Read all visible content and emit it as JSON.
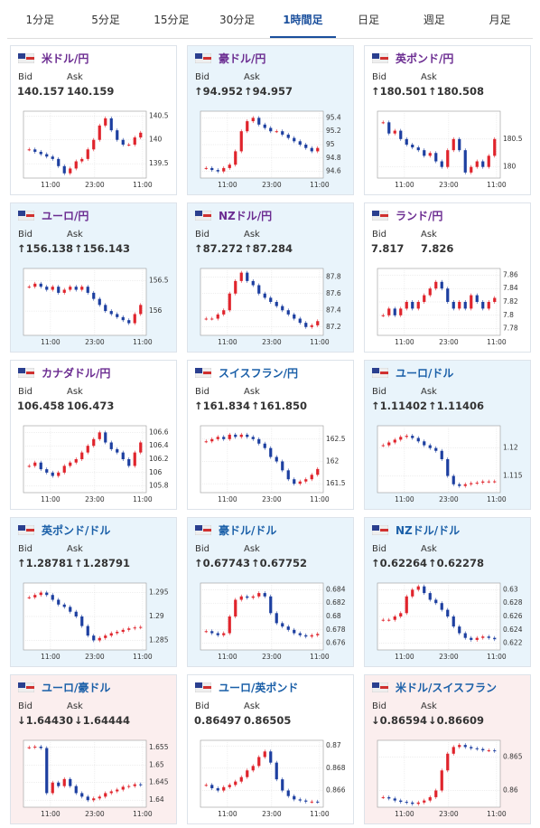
{
  "tabs": [
    "1分足",
    "5分足",
    "15分足",
    "30分足",
    "1時間足",
    "日足",
    "週足",
    "月足"
  ],
  "active_tab": 4,
  "cards": [
    {
      "pair": "米ドル/円",
      "title_color": "#6b2c91",
      "highlight": "none",
      "bid_label": "Bid",
      "ask_label": "Ask",
      "bid": "140.157",
      "ask": "140.159",
      "chart": {
        "ylim": [
          139.2,
          140.6
        ],
        "yticks": [
          139.5,
          140,
          140.5
        ],
        "xticks": [
          "11:00",
          "23:00",
          "11:00"
        ],
        "closes": [
          139.8,
          139.75,
          139.7,
          139.65,
          139.6,
          139.45,
          139.3,
          139.4,
          139.55,
          139.6,
          139.8,
          140.0,
          140.3,
          140.45,
          140.2,
          140.0,
          139.9,
          139.9,
          140.05,
          140.15
        ]
      }
    },
    {
      "pair": "豪ドル/円",
      "title_color": "#6b2c91",
      "highlight": "up",
      "bid_label": "Bid",
      "ask_label": "Ask",
      "bid": "↑94.952",
      "ask": "↑94.957",
      "chart": {
        "ylim": [
          94.5,
          95.5
        ],
        "yticks": [
          94.6,
          94.8,
          95,
          95.2,
          95.4
        ],
        "xticks": [
          "11:00",
          "23:00",
          "11:00"
        ],
        "closes": [
          94.65,
          94.62,
          94.6,
          94.65,
          94.7,
          94.9,
          95.2,
          95.35,
          95.4,
          95.3,
          95.25,
          95.2,
          95.2,
          95.15,
          95.1,
          95.05,
          95.0,
          94.95,
          94.9,
          94.95
        ]
      }
    },
    {
      "pair": "英ポンド/円",
      "title_color": "#6b2c91",
      "highlight": "none",
      "bid_label": "Bid",
      "ask_label": "Ask",
      "bid": "↑180.501",
      "ask": "↑180.508",
      "chart": {
        "ylim": [
          179.8,
          181.0
        ],
        "yticks": [
          180,
          180.5
        ],
        "xticks": [
          "11:00",
          "23:00",
          "11:00"
        ],
        "closes": [
          180.8,
          180.6,
          180.65,
          180.5,
          180.4,
          180.35,
          180.3,
          180.2,
          180.25,
          180.1,
          180.0,
          180.3,
          180.5,
          180.3,
          179.9,
          180.0,
          180.1,
          180.0,
          180.2,
          180.5
        ]
      }
    },
    {
      "pair": "ユーロ/円",
      "title_color": "#6b2c91",
      "highlight": "up",
      "bid_label": "Bid",
      "ask_label": "Ask",
      "bid": "↑156.138",
      "ask": "↑156.143",
      "chart": {
        "ylim": [
          155.6,
          156.7
        ],
        "yticks": [
          156,
          156.5
        ],
        "xticks": [
          "11:00",
          "23:00",
          "11:00"
        ],
        "closes": [
          156.4,
          156.45,
          156.4,
          156.35,
          156.4,
          156.3,
          156.35,
          156.4,
          156.35,
          156.4,
          156.3,
          156.2,
          156.1,
          156.0,
          155.95,
          155.9,
          155.85,
          155.8,
          155.95,
          156.1
        ]
      }
    },
    {
      "pair": "NZドル/円",
      "title_color": "#6b2c91",
      "highlight": "up",
      "bid_label": "Bid",
      "ask_label": "Ask",
      "bid": "↑87.272",
      "ask": "↑87.284",
      "chart": {
        "ylim": [
          87.1,
          87.9
        ],
        "yticks": [
          87.2,
          87.4,
          87.6,
          87.8
        ],
        "xticks": [
          "11:00",
          "23:00",
          "11:00"
        ],
        "closes": [
          87.3,
          87.3,
          87.35,
          87.4,
          87.6,
          87.75,
          87.85,
          87.75,
          87.7,
          87.6,
          87.55,
          87.5,
          87.45,
          87.4,
          87.35,
          87.3,
          87.25,
          87.2,
          87.22,
          87.27
        ]
      }
    },
    {
      "pair": "ランド/円",
      "title_color": "#6b2c91",
      "highlight": "none",
      "bid_label": "Bid",
      "ask_label": "Ask",
      "bid": "7.817",
      "ask": "7.826",
      "chart": {
        "ylim": [
          7.77,
          7.87
        ],
        "yticks": [
          7.78,
          7.8,
          7.82,
          7.84,
          7.86
        ],
        "xticks": [
          "11:00",
          "23:00",
          "11:00"
        ],
        "closes": [
          7.8,
          7.81,
          7.8,
          7.81,
          7.82,
          7.81,
          7.82,
          7.83,
          7.84,
          7.85,
          7.84,
          7.82,
          7.81,
          7.82,
          7.81,
          7.83,
          7.82,
          7.81,
          7.82,
          7.826
        ]
      }
    },
    {
      "pair": "カナダドル/円",
      "title_color": "#6b2c91",
      "highlight": "none",
      "bid_label": "Bid",
      "ask_label": "Ask",
      "bid": "106.458",
      "ask": "106.473",
      "chart": {
        "ylim": [
          105.7,
          106.7
        ],
        "yticks": [
          105.8,
          106,
          106.2,
          106.4,
          106.6
        ],
        "xticks": [
          "11:00",
          "23:00",
          "11:00"
        ],
        "closes": [
          106.1,
          106.15,
          106.05,
          106.0,
          105.95,
          106.0,
          106.1,
          106.15,
          106.2,
          106.3,
          106.4,
          106.5,
          106.6,
          106.45,
          106.35,
          106.3,
          106.2,
          106.1,
          106.3,
          106.45
        ]
      }
    },
    {
      "pair": "スイスフラン/円",
      "title_color": "#1a5fa8",
      "highlight": "none",
      "bid_label": "Bid",
      "ask_label": "Ask",
      "bid": "↑161.834",
      "ask": "↑161.850",
      "chart": {
        "ylim": [
          161.3,
          162.8
        ],
        "yticks": [
          161.5,
          162,
          162.5
        ],
        "xticks": [
          "11:00",
          "23:00",
          "11:00"
        ],
        "closes": [
          162.45,
          162.5,
          162.55,
          162.5,
          162.6,
          162.55,
          162.6,
          162.55,
          162.5,
          162.4,
          162.3,
          162.1,
          162.0,
          161.8,
          161.6,
          161.5,
          161.55,
          161.6,
          161.7,
          161.83
        ]
      }
    },
    {
      "pair": "ユーロ/ドル",
      "title_color": "#1a5fa8",
      "highlight": "up",
      "bid_label": "Bid",
      "ask_label": "Ask",
      "bid": "↑1.11402",
      "ask": "↑1.11406",
      "chart": {
        "ylim": [
          1.112,
          1.124
        ],
        "yticks": [
          1.115,
          1.12
        ],
        "xticks": [
          "11:00",
          "23:00",
          "11:00"
        ],
        "closes": [
          1.1205,
          1.121,
          1.1215,
          1.122,
          1.1222,
          1.1218,
          1.1212,
          1.1205,
          1.12,
          1.1195,
          1.118,
          1.115,
          1.1135,
          1.1132,
          1.1135,
          1.1137,
          1.1138,
          1.114,
          1.114,
          1.11402
        ]
      }
    },
    {
      "pair": "英ポンド/ドル",
      "title_color": "#1a5fa8",
      "highlight": "up",
      "bid_label": "Bid",
      "ask_label": "Ask",
      "bid": "↑1.28781",
      "ask": "↑1.28791",
      "chart": {
        "ylim": [
          1.283,
          1.297
        ],
        "yticks": [
          1.285,
          1.29,
          1.295
        ],
        "xticks": [
          "11:00",
          "23:00",
          "11:00"
        ],
        "closes": [
          1.294,
          1.2945,
          1.295,
          1.2945,
          1.2935,
          1.2925,
          1.292,
          1.291,
          1.29,
          1.288,
          1.286,
          1.285,
          1.2855,
          1.286,
          1.2865,
          1.2868,
          1.2872,
          1.2875,
          1.2877,
          1.2878
        ]
      }
    },
    {
      "pair": "豪ドル/ドル",
      "title_color": "#1a5fa8",
      "highlight": "up",
      "bid_label": "Bid",
      "ask_label": "Ask",
      "bid": "↑0.67743",
      "ask": "↑0.67752",
      "chart": {
        "ylim": [
          0.675,
          0.685
        ],
        "yticks": [
          0.676,
          0.678,
          0.68,
          0.682,
          0.684
        ],
        "xticks": [
          "11:00",
          "23:00",
          "11:00"
        ],
        "closes": [
          0.6778,
          0.6775,
          0.6772,
          0.6775,
          0.68,
          0.6825,
          0.683,
          0.6828,
          0.683,
          0.6835,
          0.683,
          0.6805,
          0.679,
          0.6785,
          0.678,
          0.6775,
          0.6772,
          0.677,
          0.6772,
          0.6774
        ]
      }
    },
    {
      "pair": "NZドル/ドル",
      "title_color": "#1a5fa8",
      "highlight": "up",
      "bid_label": "Bid",
      "ask_label": "Ask",
      "bid": "↑0.62264",
      "ask": "↑0.62278",
      "chart": {
        "ylim": [
          0.621,
          0.631
        ],
        "yticks": [
          0.622,
          0.624,
          0.626,
          0.628,
          0.63
        ],
        "xticks": [
          "11:00",
          "23:00",
          "11:00"
        ],
        "closes": [
          0.6255,
          0.6255,
          0.626,
          0.6265,
          0.629,
          0.63,
          0.6305,
          0.6295,
          0.6285,
          0.628,
          0.627,
          0.626,
          0.6245,
          0.6235,
          0.6228,
          0.6225,
          0.6228,
          0.623,
          0.6228,
          0.6226
        ]
      }
    },
    {
      "pair": "ユーロ/豪ドル",
      "title_color": "#1a5fa8",
      "highlight": "down",
      "bid_label": "Bid",
      "ask_label": "Ask",
      "bid": "↓1.64430",
      "ask": "↓1.64444",
      "chart": {
        "ylim": [
          1.638,
          1.657
        ],
        "yticks": [
          1.64,
          1.645,
          1.65,
          1.655
        ],
        "xticks": [
          "11:00",
          "23:00",
          "11:00"
        ],
        "closes": [
          1.655,
          1.6552,
          1.6548,
          1.642,
          1.645,
          1.644,
          1.646,
          1.644,
          1.642,
          1.641,
          1.64,
          1.6405,
          1.641,
          1.642,
          1.6425,
          1.643,
          1.6438,
          1.644,
          1.6445,
          1.6443
        ]
      }
    },
    {
      "pair": "ユーロ/英ポンド",
      "title_color": "#1a5fa8",
      "highlight": "none",
      "bid_label": "Bid",
      "ask_label": "Ask",
      "bid": "0.86497",
      "ask": "0.86505",
      "chart": {
        "ylim": [
          0.8645,
          0.8705
        ],
        "yticks": [
          0.866,
          0.868,
          0.87
        ],
        "xticks": [
          "11:00",
          "23:00",
          "11:00"
        ],
        "closes": [
          0.8665,
          0.8662,
          0.866,
          0.8663,
          0.8665,
          0.8668,
          0.8672,
          0.8678,
          0.8682,
          0.869,
          0.8695,
          0.8685,
          0.867,
          0.866,
          0.8655,
          0.8652,
          0.8651,
          0.865,
          0.865,
          0.86497
        ]
      }
    },
    {
      "pair": "米ドル/スイスフラン",
      "title_color": "#1a5fa8",
      "highlight": "down",
      "bid_label": "Bid",
      "ask_label": "Ask",
      "bid": "↓0.86594",
      "ask": "↓0.86609",
      "chart": {
        "ylim": [
          0.8575,
          0.8675
        ],
        "yticks": [
          0.86,
          0.865
        ],
        "xticks": [
          "11:00",
          "23:00",
          "11:00"
        ],
        "closes": [
          0.859,
          0.8588,
          0.8585,
          0.8583,
          0.8582,
          0.858,
          0.8582,
          0.8585,
          0.859,
          0.86,
          0.863,
          0.8655,
          0.8665,
          0.8668,
          0.8665,
          0.8663,
          0.8662,
          0.866,
          0.866,
          0.8659
        ]
      }
    }
  ]
}
